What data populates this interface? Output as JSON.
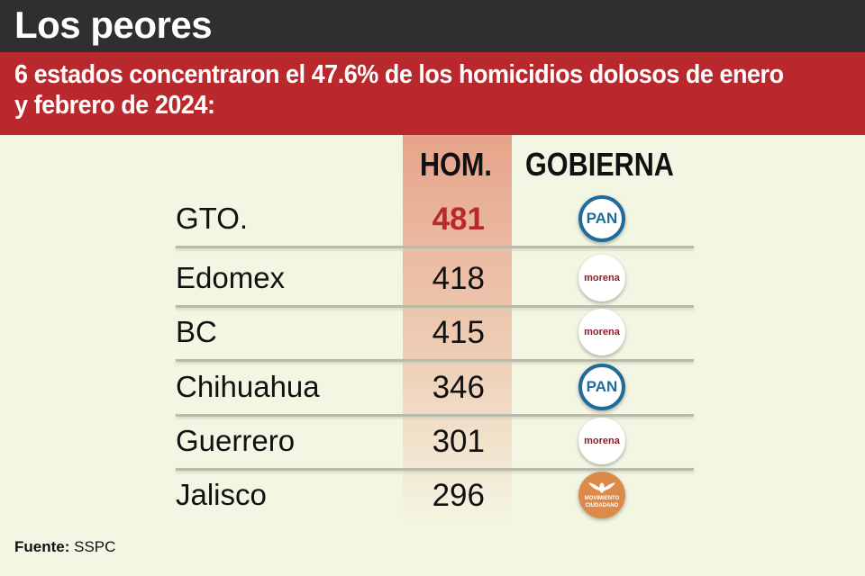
{
  "title": "Los peores",
  "subtitle": "6 estados concentraron el 47.6% de los homicidios dolosos de enero y febrero de 2024:",
  "chart_data": {
    "type": "table",
    "columns": [
      "",
      "HOM.",
      "GOBIERNA"
    ],
    "rows": [
      {
        "estado": "GTO.",
        "hom": "481",
        "gobierna": "PAN"
      },
      {
        "estado": "Edomex",
        "hom": "418",
        "gobierna": "morena"
      },
      {
        "estado": "BC",
        "hom": "415",
        "gobierna": "morena"
      },
      {
        "estado": "Chihuahua",
        "hom": "346",
        "gobierna": "PAN"
      },
      {
        "estado": "Guerrero",
        "hom": "301",
        "gobierna": "morena"
      },
      {
        "estado": "Jalisco",
        "hom": "296",
        "gobierna": "MOVIMIENTO CIUDADANO"
      }
    ]
  },
  "source_label": "Fuente:",
  "source": "SSPC",
  "colors": {
    "header": "#2f2f31",
    "band": "#b8282d",
    "highlight": "#e6a48a"
  }
}
